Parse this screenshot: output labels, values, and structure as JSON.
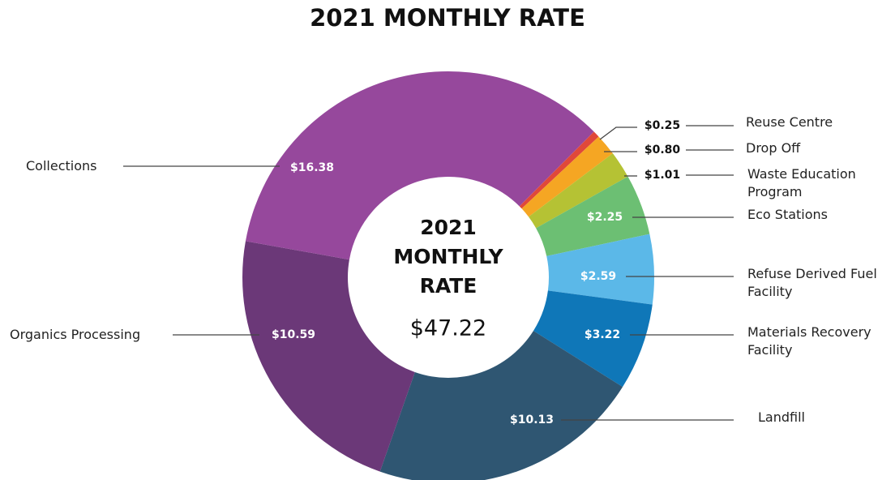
{
  "chart_data": {
    "type": "donut",
    "title": "2021 MONTHLY RATE",
    "center_label_lines": [
      "2021",
      "MONTHLY",
      "RATE"
    ],
    "total": {
      "value": 47.22,
      "label": "$47.22"
    },
    "categories": [
      "Reuse Centre",
      "Drop Off",
      "Waste Education Program",
      "Eco Stations",
      "Refuse Derived Fuel Facility",
      "Materials Recovery Facility",
      "Landfill",
      "Organics Processing",
      "Collections"
    ],
    "values": [
      0.25,
      0.8,
      1.01,
      2.25,
      2.59,
      3.22,
      10.13,
      10.59,
      16.38
    ],
    "value_labels": [
      "$0.25",
      "$0.80",
      "$1.01",
      "$2.25",
      "$2.59",
      "$3.22",
      "$10.13",
      "$10.59",
      "$16.38"
    ],
    "colors": [
      "#e0483a",
      "#f5a623",
      "#b5c234",
      "#6cbf73",
      "#5bb8e8",
      "#0f77b8",
      "#2f5672",
      "#6b3878",
      "#96489c"
    ]
  }
}
